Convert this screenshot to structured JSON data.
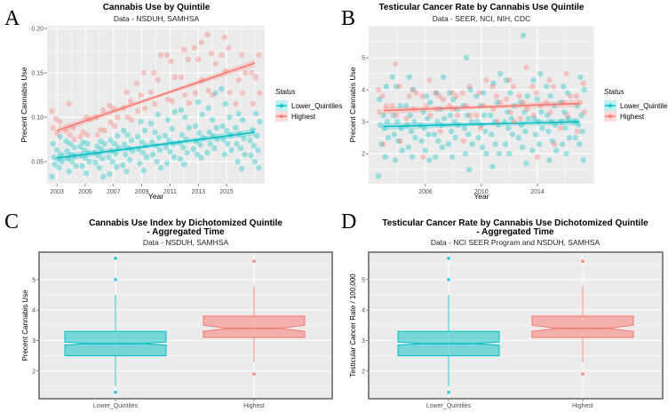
{
  "colors": {
    "lower": "#00BFC4",
    "highest": "#F8766D",
    "panel_bg": "#EBEBEB",
    "grid": "#FFFFFF"
  },
  "chart_data": [
    {
      "panel_letter": "A",
      "type": "scatter",
      "title": "Cannabis Use by Quintile",
      "subtitle": "Data - NSDUH, SAMHSA",
      "xlabel": "Year",
      "ylabel": "Precent Cannabis Use",
      "xlim": [
        2002.3,
        2017.7
      ],
      "ylim": [
        0.025,
        0.203
      ],
      "xticks": [
        2003,
        2005,
        2007,
        2009,
        2011,
        2013,
        2015
      ],
      "xtick_labels": [
        "2003",
        "2005",
        "2007",
        "2009",
        "2011",
        "2013",
        "2015"
      ],
      "yticks": [
        0.05,
        0.1,
        0.15,
        0.2
      ],
      "ytick_labels": [
        "0.05",
        "0.10",
        "0.15",
        "0.20"
      ],
      "grid": true,
      "legend": {
        "title": "Status",
        "placement": "right",
        "entries": [
          "Lower_Quintiles",
          "Highest"
        ]
      },
      "years": [
        2003,
        2004,
        2005,
        2006,
        2007,
        2008,
        2009,
        2010,
        2011,
        2012,
        2013,
        2014,
        2015,
        2016,
        2017
      ],
      "series": [
        {
          "name": "Lower_Quintiles",
          "color": "#00BFC4",
          "trend": {
            "x": [
              2003,
              2017
            ],
            "y": [
              0.054,
              0.083
            ]
          },
          "values_by_year": [
            [
              0.033,
              0.043,
              0.047,
              0.05,
              0.053,
              0.055,
              0.058,
              0.063,
              0.07,
              0.078
            ],
            [
              0.039,
              0.045,
              0.05,
              0.053,
              0.056,
              0.058,
              0.062,
              0.066,
              0.07,
              0.073
            ],
            [
              0.037,
              0.045,
              0.05,
              0.054,
              0.057,
              0.06,
              0.063,
              0.067,
              0.07,
              0.072
            ],
            [
              0.033,
              0.043,
              0.049,
              0.053,
              0.057,
              0.06,
              0.064,
              0.067,
              0.07,
              0.073
            ],
            [
              0.036,
              0.044,
              0.05,
              0.055,
              0.059,
              0.062,
              0.066,
              0.07,
              0.074,
              0.079
            ],
            [
              0.039,
              0.046,
              0.052,
              0.058,
              0.062,
              0.065,
              0.069,
              0.074,
              0.08,
              0.085
            ],
            [
              0.04,
              0.048,
              0.055,
              0.06,
              0.064,
              0.068,
              0.072,
              0.078,
              0.085,
              0.095
            ],
            [
              0.043,
              0.05,
              0.058,
              0.063,
              0.068,
              0.072,
              0.077,
              0.083,
              0.093,
              0.103
            ],
            [
              0.048,
              0.055,
              0.061,
              0.066,
              0.07,
              0.074,
              0.079,
              0.087,
              0.097,
              0.106
            ],
            [
              0.047,
              0.053,
              0.06,
              0.066,
              0.071,
              0.075,
              0.08,
              0.088,
              0.1,
              0.108
            ],
            [
              0.054,
              0.058,
              0.064,
              0.069,
              0.073,
              0.077,
              0.082,
              0.09,
              0.103,
              0.117
            ],
            [
              0.06,
              0.065,
              0.07,
              0.075,
              0.079,
              0.083,
              0.088,
              0.097,
              0.11,
              0.127
            ],
            [
              0.058,
              0.063,
              0.07,
              0.075,
              0.08,
              0.085,
              0.09,
              0.1,
              0.115,
              0.132
            ],
            [
              0.042,
              0.05,
              0.058,
              0.065,
              0.07,
              0.076,
              0.081,
              0.088,
              0.097,
              0.104
            ],
            [
              0.043,
              0.05,
              0.057,
              0.063,
              0.068,
              0.074,
              0.079,
              0.086,
              0.095,
              0.104
            ]
          ]
        },
        {
          "name": "Highest",
          "color": "#F8766D",
          "trend": {
            "x": [
              2003,
              2017
            ],
            "y": [
              0.085,
              0.161
            ]
          },
          "values_by_year": [
            [
              0.082,
              0.088,
              0.095,
              0.098,
              0.107
            ],
            [
              0.075,
              0.08,
              0.085,
              0.088,
              0.115
            ],
            [
              0.078,
              0.08,
              0.083,
              0.098,
              0.1
            ],
            [
              0.08,
              0.085,
              0.086,
              0.1,
              0.108
            ],
            [
              0.09,
              0.094,
              0.1,
              0.11,
              0.113
            ],
            [
              0.097,
              0.1,
              0.11,
              0.118,
              0.128
            ],
            [
              0.107,
              0.11,
              0.125,
              0.138,
              0.15
            ],
            [
              0.115,
              0.128,
              0.142,
              0.15,
              0.17
            ],
            [
              0.118,
              0.12,
              0.145,
              0.163,
              0.17
            ],
            [
              0.116,
              0.125,
              0.145,
              0.165,
              0.176
            ],
            [
              0.127,
              0.142,
              0.165,
              0.178,
              0.184
            ],
            [
              0.125,
              0.13,
              0.16,
              0.172,
              0.193
            ],
            [
              0.128,
              0.152,
              0.17,
              0.178,
              0.19
            ],
            [
              0.115,
              0.127,
              0.142,
              0.15,
              0.17
            ],
            [
              0.115,
              0.127,
              0.145,
              0.15,
              0.17
            ]
          ]
        }
      ]
    },
    {
      "panel_letter": "B",
      "type": "scatter",
      "title": "Testicular Cancer Rate by Cannabis Use Quintile",
      "subtitle": "Data - SEER, NCI, NIH, CDC",
      "xlabel": "Year",
      "ylabel": "Precent Cannabis Use",
      "xlim": [
        2001.95,
        2018.06
      ],
      "ylim": [
        1.06,
        6.0
      ],
      "xticks": [
        2006,
        2010,
        2014
      ],
      "xtick_labels": [
        "2006",
        "2010",
        "2014"
      ],
      "yticks": [
        2,
        3,
        4,
        5
      ],
      "ytick_labels": [
        "2",
        "3",
        "4",
        "5"
      ],
      "grid": true,
      "legend": {
        "title": "Status",
        "placement": "right",
        "entries": [
          "Lower_Quintiles",
          "Highest"
        ]
      },
      "years": [
        2003,
        2004,
        2005,
        2006,
        2007,
        2008,
        2009,
        2010,
        2011,
        2012,
        2013,
        2014,
        2015,
        2016,
        2017
      ],
      "series": [
        {
          "name": "Lower_Quintiles",
          "color": "#00BFC4",
          "trend": {
            "x": [
              2003,
              2017
            ],
            "y": [
              2.85,
              3.0
            ]
          },
          "values_by_year": [
            [
              1.3,
              1.9,
              2.3,
              2.5,
              2.8,
              2.9,
              3.0,
              3.2,
              3.7,
              4.1
            ],
            [
              1.8,
              2.1,
              2.4,
              2.6,
              2.8,
              3.0,
              3.2,
              3.5,
              4.1,
              4.4
            ],
            [
              1.9,
              2.2,
              2.5,
              2.7,
              2.9,
              3.0,
              3.2,
              3.5,
              4.0,
              4.4
            ],
            [
              1.8,
              2.1,
              2.4,
              2.6,
              2.8,
              2.9,
              3.1,
              3.3,
              3.6,
              3.8
            ],
            [
              1.9,
              2.2,
              2.4,
              2.6,
              2.9,
              3.0,
              3.1,
              3.4,
              3.9,
              4.4
            ],
            [
              1.9,
              2.3,
              2.5,
              2.7,
              2.9,
              3.0,
              3.2,
              3.4,
              3.7,
              3.9
            ],
            [
              1.5,
              2.0,
              2.3,
              2.6,
              2.8,
              3.0,
              3.2,
              3.5,
              4.0,
              5.0
            ],
            [
              2.0,
              2.2,
              2.5,
              2.7,
              2.9,
              3.0,
              3.2,
              3.5,
              3.8,
              3.9
            ],
            [
              1.6,
              2.0,
              2.3,
              2.6,
              2.9,
              3.0,
              3.2,
              3.6,
              4.2,
              4.5
            ],
            [
              2.0,
              2.3,
              2.6,
              2.8,
              3.0,
              3.1,
              3.3,
              3.5,
              3.9,
              4.3
            ],
            [
              1.7,
              2.2,
              2.5,
              2.7,
              2.9,
              3.1,
              3.3,
              3.6,
              3.8,
              5.7
            ],
            [
              2.1,
              2.3,
              2.6,
              2.8,
              3.0,
              3.1,
              3.3,
              3.7,
              4.3,
              4.5
            ],
            [
              1.8,
              2.1,
              2.4,
              2.7,
              2.9,
              3.0,
              3.2,
              3.5,
              3.8,
              4.1
            ],
            [
              2.0,
              2.3,
              2.5,
              2.8,
              3.0,
              3.1,
              3.3,
              3.6,
              3.9,
              4.1
            ],
            [
              1.8,
              2.3,
              2.5,
              2.7,
              2.9,
              3.0,
              3.2,
              3.5,
              4.0,
              4.4
            ]
          ]
        },
        {
          "name": "Highest",
          "color": "#F8766D",
          "trend": {
            "x": [
              2003,
              2017
            ],
            "y": [
              3.35,
              3.57
            ]
          },
          "values_by_year": [
            [
              2.3,
              3.3,
              3.5,
              3.8,
              4.0
            ],
            [
              2.4,
              3.2,
              3.5,
              4.1,
              4.8
            ],
            [
              3.1,
              3.4,
              3.8,
              3.9,
              4.0
            ],
            [
              1.9,
              3.2,
              3.5,
              3.8,
              4.3
            ],
            [
              2.7,
              3.4,
              3.7,
              3.8,
              3.9
            ],
            [
              3.2,
              3.4,
              3.5,
              3.8,
              3.9
            ],
            [
              2.4,
              3.2,
              3.5,
              3.9,
              4.1
            ],
            [
              2.8,
              3.2,
              3.5,
              3.9,
              4.3
            ],
            [
              3.0,
              3.4,
              3.6,
              3.8,
              4.1
            ],
            [
              3.0,
              3.3,
              3.7,
              4.1,
              4.3
            ],
            [
              3.1,
              3.4,
              3.6,
              3.8,
              4.7
            ],
            [
              1.9,
              3.2,
              3.5,
              3.9,
              4.1
            ],
            [
              2.3,
              3.3,
              3.6,
              4.1,
              4.3
            ],
            [
              2.8,
              3.2,
              3.6,
              3.8,
              4.5
            ],
            [
              2.7,
              3.3,
              3.6,
              3.8,
              4.2
            ]
          ]
        }
      ]
    },
    {
      "panel_letter": "C",
      "type": "box",
      "title": "Cannabis Use Index by Dichotomized Quintile",
      "title_line2": "- Aggregated Time",
      "subtitle": "Data - NSDUH, SAMHSA",
      "xlabel": "",
      "ylabel": "Precent Cannabis Use",
      "ylim": [
        1.09,
        5.9
      ],
      "yticks": [
        2,
        3,
        4,
        5
      ],
      "ytick_labels": [
        "2",
        "3",
        "4",
        "5"
      ],
      "grid": true,
      "notched": true,
      "categories": [
        "Lower_Quintiles",
        "Highest"
      ],
      "boxes": [
        {
          "name": "Lower_Quintiles",
          "color": "#00BFC4",
          "whisker_low": 1.5,
          "q1": 2.5,
          "median": 2.9,
          "q3": 3.3,
          "whisker_high": 4.5,
          "notch": [
            2.85,
            2.95
          ],
          "outliers": [
            1.3,
            5.0,
            5.7
          ]
        },
        {
          "name": "Highest",
          "color": "#F8766D",
          "whisker_low": 2.3,
          "q1": 3.1,
          "median": 3.4,
          "q3": 3.8,
          "whisker_high": 4.8,
          "notch": [
            3.3,
            3.5
          ],
          "outliers": [
            1.9,
            5.6
          ]
        }
      ]
    },
    {
      "panel_letter": "D",
      "type": "box",
      "title": "Testicular Cancer Rate by Cannabis Use Dichotomized Quintile",
      "title_line2": "- Aggregated Time",
      "subtitle": "Data - NCI SEER Program and NSDUH, SAMHSA",
      "xlabel": "",
      "ylabel": "Testicular Cancer Rate / 100,000",
      "ylim": [
        1.09,
        5.9
      ],
      "yticks": [
        2,
        3,
        4,
        5
      ],
      "ytick_labels": [
        "2",
        "3",
        "4",
        "5"
      ],
      "grid": true,
      "notched": true,
      "categories": [
        "Lower_Quintiles",
        "Highest"
      ],
      "boxes": [
        {
          "name": "Lower_Quintiles",
          "color": "#00BFC4",
          "whisker_low": 1.5,
          "q1": 2.5,
          "median": 2.9,
          "q3": 3.3,
          "whisker_high": 4.5,
          "notch": [
            2.85,
            2.95
          ],
          "outliers": [
            1.3,
            5.0,
            5.7
          ]
        },
        {
          "name": "Highest",
          "color": "#F8766D",
          "whisker_low": 2.3,
          "q1": 3.1,
          "median": 3.4,
          "q3": 3.8,
          "whisker_high": 4.8,
          "notch": [
            3.3,
            3.5
          ],
          "outliers": [
            1.9,
            5.6
          ]
        }
      ]
    }
  ]
}
